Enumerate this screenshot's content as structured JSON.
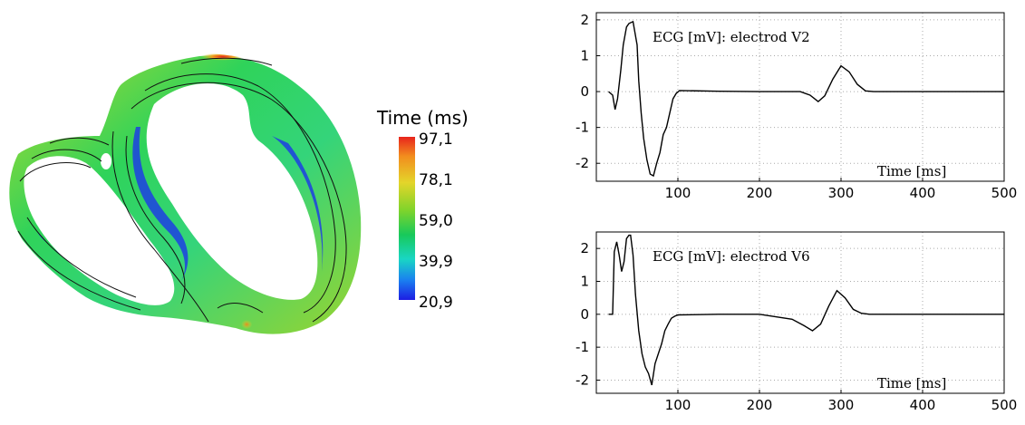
{
  "heatmap": {
    "colorbar_title": "Time (ms)",
    "colorbar_ticks": [
      "97,1",
      "78,1",
      "59,0",
      "39,9",
      "20,9"
    ],
    "colors": {
      "max": "#e8241c",
      "high": "#e4d52a",
      "mid": "#18c95a",
      "low": "#19d6c4",
      "min": "#1d1de3"
    }
  },
  "chart_data": [
    {
      "type": "line",
      "annotation": "ECG [mV]: electrod V2",
      "xlabel": "Time [ms]",
      "xlim": [
        0,
        500
      ],
      "ylim": [
        -2.5,
        2.2
      ],
      "xticks": [
        100,
        200,
        300,
        400,
        500
      ],
      "yticks": [
        2,
        1,
        0,
        -1,
        -2
      ],
      "grid": true,
      "series": [
        {
          "x": [
            15,
            20,
            23,
            26,
            30,
            33,
            37,
            40,
            45,
            50,
            52,
            55,
            58,
            62,
            66,
            70,
            74,
            78,
            82,
            86,
            90,
            94,
            98,
            102,
            150,
            200,
            250,
            262,
            272,
            280,
            290,
            300,
            310,
            320,
            330,
            340,
            400,
            500
          ],
          "y": [
            0,
            -0.1,
            -0.5,
            -0.2,
            0.6,
            1.3,
            1.8,
            1.9,
            1.95,
            1.3,
            0.3,
            -0.6,
            -1.3,
            -1.9,
            -2.3,
            -2.35,
            -2.0,
            -1.7,
            -1.2,
            -1.0,
            -0.6,
            -0.2,
            -0.05,
            0.03,
            0.01,
            0.0,
            0.0,
            -0.1,
            -0.28,
            -0.12,
            0.35,
            0.72,
            0.55,
            0.2,
            0.02,
            0.0,
            0.0,
            0.0
          ]
        }
      ]
    },
    {
      "type": "line",
      "annotation": "ECG [mV]: electrod V6",
      "xlabel": "Time [ms]",
      "xlim": [
        0,
        500
      ],
      "ylim": [
        -2.4,
        2.5
      ],
      "xticks": [
        100,
        200,
        300,
        400,
        500
      ],
      "yticks": [
        2,
        1,
        0,
        -1,
        -2
      ],
      "grid": true,
      "series": [
        {
          "x": [
            15,
            20,
            22,
            25,
            28,
            31,
            34,
            37,
            40,
            42,
            45,
            48,
            52,
            56,
            60,
            64,
            68,
            72,
            76,
            80,
            84,
            88,
            92,
            96,
            100,
            150,
            200,
            240,
            255,
            265,
            275,
            285,
            295,
            305,
            315,
            325,
            335,
            345,
            400,
            500
          ],
          "y": [
            0,
            0.0,
            1.9,
            2.2,
            1.8,
            1.3,
            1.6,
            2.3,
            2.4,
            2.4,
            1.8,
            0.6,
            -0.5,
            -1.2,
            -1.6,
            -1.8,
            -2.15,
            -1.5,
            -1.2,
            -0.9,
            -0.5,
            -0.3,
            -0.12,
            -0.06,
            -0.02,
            0.0,
            0.0,
            -0.15,
            -0.35,
            -0.5,
            -0.3,
            0.25,
            0.72,
            0.5,
            0.15,
            0.03,
            0.0,
            0.0,
            0.0,
            0.0
          ]
        }
      ]
    }
  ]
}
